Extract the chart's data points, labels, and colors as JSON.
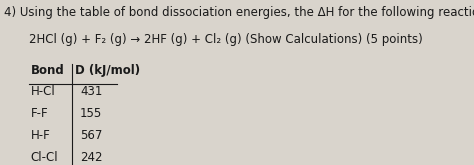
{
  "question_number": "4)",
  "text_line1": "Using the table of bond dissociation energies, the ΔH for the following reaction is _______ kJ.",
  "text_line2": "2HCl (g) + F₂ (g) → 2HF (g) + Cl₂ (g) (Show Calculations) (5 points)",
  "table_header_bond": "Bond",
  "table_header_d": "D (kJ/mol)",
  "table_data": [
    [
      "H-Cl",
      "431"
    ],
    [
      "F-F",
      "155"
    ],
    [
      "H-F",
      "567"
    ],
    [
      "Cl-Cl",
      "242"
    ]
  ],
  "bg_color": "#d9d4cc",
  "text_color": "#1a1a1a",
  "font_size_main": 8.5,
  "font_size_table": 8.5
}
